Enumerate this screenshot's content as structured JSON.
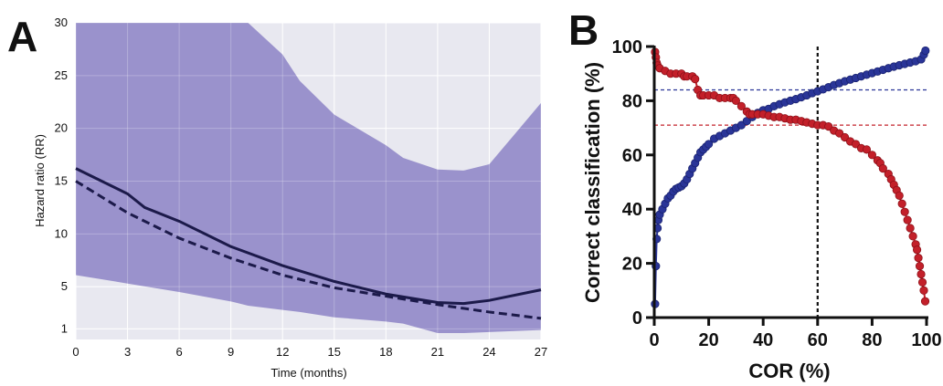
{
  "panels": {
    "a_letter": "A",
    "b_letter": "B"
  },
  "chart_data": [
    {
      "panel": "A",
      "type": "area",
      "xlabel": "Time (months)",
      "ylabel": "Hazard ratio (RR)",
      "xlim": [
        0,
        27
      ],
      "ylim": [
        0,
        30
      ],
      "xticks": [
        0,
        3,
        6,
        9,
        12,
        15,
        18,
        21,
        24,
        27
      ],
      "yticks": [
        1,
        5,
        10,
        15,
        20,
        25,
        30
      ],
      "grid": true,
      "colors": {
        "background": "#e8e8f0",
        "band": "#9a92cc",
        "line": "#1c1a4a"
      },
      "band": {
        "x": [
          0,
          3,
          6,
          9,
          10,
          12,
          13,
          15,
          18,
          19,
          21,
          22.5,
          24,
          25.5,
          27
        ],
        "upper": [
          30,
          30,
          30,
          30,
          30,
          27,
          24.5,
          21.3,
          18.4,
          17.2,
          16.1,
          16.0,
          16.6,
          19.5,
          22.4
        ],
        "lower": [
          6.1,
          5.3,
          4.5,
          3.6,
          3.2,
          2.8,
          2.6,
          2.1,
          1.7,
          1.5,
          0.6,
          0.6,
          0.7,
          0.8,
          0.9
        ]
      },
      "series": [
        {
          "style": "solid",
          "x": [
            0,
            3,
            4,
            6,
            9,
            12,
            15,
            18,
            21,
            22.5,
            24,
            27
          ],
          "values": [
            16.2,
            13.8,
            12.5,
            11.2,
            8.8,
            7.0,
            5.5,
            4.3,
            3.5,
            3.4,
            3.7,
            4.7
          ]
        },
        {
          "style": "dashed",
          "x": [
            0,
            3,
            6,
            9,
            12,
            15,
            18,
            21,
            24,
            27
          ],
          "values": [
            15.0,
            12.0,
            9.6,
            7.7,
            6.1,
            4.9,
            4.1,
            3.3,
            2.6,
            2.0
          ]
        }
      ]
    },
    {
      "panel": "B",
      "type": "line",
      "xlabel": "COR (%)",
      "ylabel": "Correct classification (%)",
      "xlim": [
        0,
        100
      ],
      "ylim": [
        0,
        100
      ],
      "xticks": [
        0,
        20,
        40,
        60,
        80,
        100
      ],
      "yticks": [
        0,
        20,
        40,
        60,
        80,
        100
      ],
      "grid": false,
      "reference_lines": {
        "vertical_x": 60,
        "blue_y": 84,
        "red_y": 71
      },
      "series": [
        {
          "color": "#2a3598",
          "x": [
            0.3,
            0.6,
            0.9,
            1.2,
            1.5,
            2,
            3,
            4,
            5,
            6,
            7,
            8,
            9,
            10,
            11,
            12,
            13,
            14,
            15,
            16,
            17,
            18,
            19,
            20,
            22,
            24,
            26,
            28,
            30,
            32,
            34,
            36,
            38,
            40,
            42,
            44,
            46,
            48,
            50,
            52,
            54,
            56,
            58,
            60,
            62,
            64,
            66,
            68,
            70,
            72,
            74,
            76,
            78,
            80,
            82,
            84,
            86,
            88,
            90,
            92,
            94,
            96,
            98,
            99,
            99.6
          ],
          "values": [
            5,
            19,
            29,
            33,
            36,
            38,
            40,
            42,
            44,
            45,
            46.5,
            47.5,
            48,
            48.5,
            49.5,
            51,
            53,
            55,
            57,
            59,
            61,
            62,
            63,
            64,
            66,
            67,
            68,
            69,
            70,
            71,
            72.5,
            74,
            75.5,
            76.5,
            77,
            78,
            78.7,
            79.4,
            80,
            80.6,
            81.3,
            82,
            82.8,
            83.5,
            84.2,
            85,
            85.8,
            86.5,
            87.2,
            87.8,
            88.4,
            89,
            89.6,
            90.2,
            90.8,
            91.4,
            92,
            92.6,
            93.1,
            93.6,
            94.1,
            94.6,
            95.3,
            97,
            98.5
          ]
        },
        {
          "color": "#c3202a",
          "x": [
            0.3,
            0.6,
            0.9,
            1.2,
            2,
            4,
            6,
            8,
            10,
            11,
            12,
            14,
            15,
            16,
            17,
            18,
            20,
            22,
            24,
            26,
            28,
            29,
            30,
            32,
            34,
            35,
            36,
            38,
            40,
            42,
            44,
            46,
            48,
            50,
            52,
            54,
            56,
            58,
            60,
            62,
            64,
            66,
            68,
            70,
            72,
            74,
            76,
            78,
            80,
            82,
            83,
            84,
            86,
            87,
            88,
            89,
            90,
            91,
            92,
            93,
            94,
            95,
            96,
            96.5,
            97,
            97.5,
            98,
            98.5,
            99,
            99.5
          ],
          "values": [
            98,
            96,
            94,
            93,
            92,
            91,
            90,
            90,
            90,
            89,
            89,
            89,
            88,
            84,
            82,
            82,
            82,
            82,
            81,
            81,
            81,
            81,
            80,
            78,
            76,
            75,
            75,
            75,
            75,
            74.5,
            74,
            74,
            73.5,
            73,
            73,
            72.5,
            72,
            71.5,
            71,
            71,
            70.5,
            69,
            68,
            66.5,
            65,
            64,
            62.5,
            62,
            60,
            58,
            57,
            55,
            53,
            51,
            49,
            47,
            45,
            42,
            39,
            36,
            33,
            30,
            27,
            25,
            22,
            19,
            16,
            13,
            10,
            6
          ]
        }
      ]
    }
  ]
}
